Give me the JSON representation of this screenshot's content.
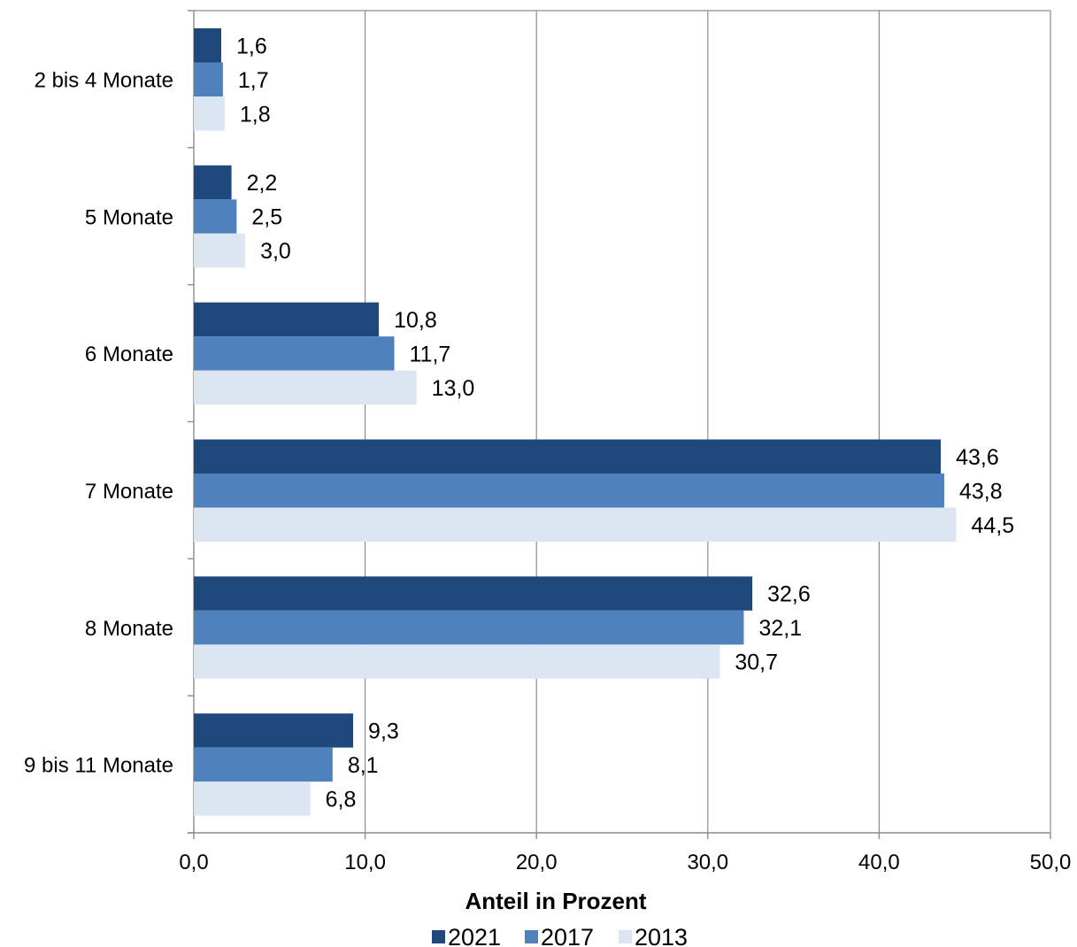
{
  "chart_data": {
    "type": "bar",
    "orientation": "horizontal",
    "categories": [
      "2 bis 4 Monate",
      "5 Monate",
      "6 Monate",
      "7 Monate",
      "8 Monate",
      "9 bis 11 Monate"
    ],
    "series": [
      {
        "name": "2021",
        "color": "#1f497d",
        "values": [
          1.6,
          2.2,
          10.8,
          43.6,
          32.6,
          9.3
        ],
        "labels": [
          "1,6",
          "2,2",
          "10,8",
          "43,6",
          "32,6",
          "9,3"
        ]
      },
      {
        "name": "2017",
        "color": "#4f81bd",
        "values": [
          1.7,
          2.5,
          11.7,
          43.8,
          32.1,
          8.1
        ],
        "labels": [
          "1,7",
          "2,5",
          "11,7",
          "43,8",
          "32,1",
          "8,1"
        ]
      },
      {
        "name": "2013",
        "color": "#dce6f2",
        "values": [
          1.8,
          3.0,
          13.0,
          44.5,
          30.7,
          6.8
        ],
        "labels": [
          "1,8",
          "3,0",
          "13,0",
          "44,5",
          "30,7",
          "6,8"
        ]
      }
    ],
    "xlim": [
      0,
      50
    ],
    "xticks": [
      0,
      10,
      20,
      30,
      40,
      50
    ],
    "xtick_labels": [
      "0,0",
      "10,0",
      "20,0",
      "30,0",
      "40,0",
      "50,0"
    ],
    "xlabel": "Anteil in Prozent",
    "ylabel": "",
    "title": "",
    "grid": "vertical",
    "legend_position": "bottom-center"
  }
}
